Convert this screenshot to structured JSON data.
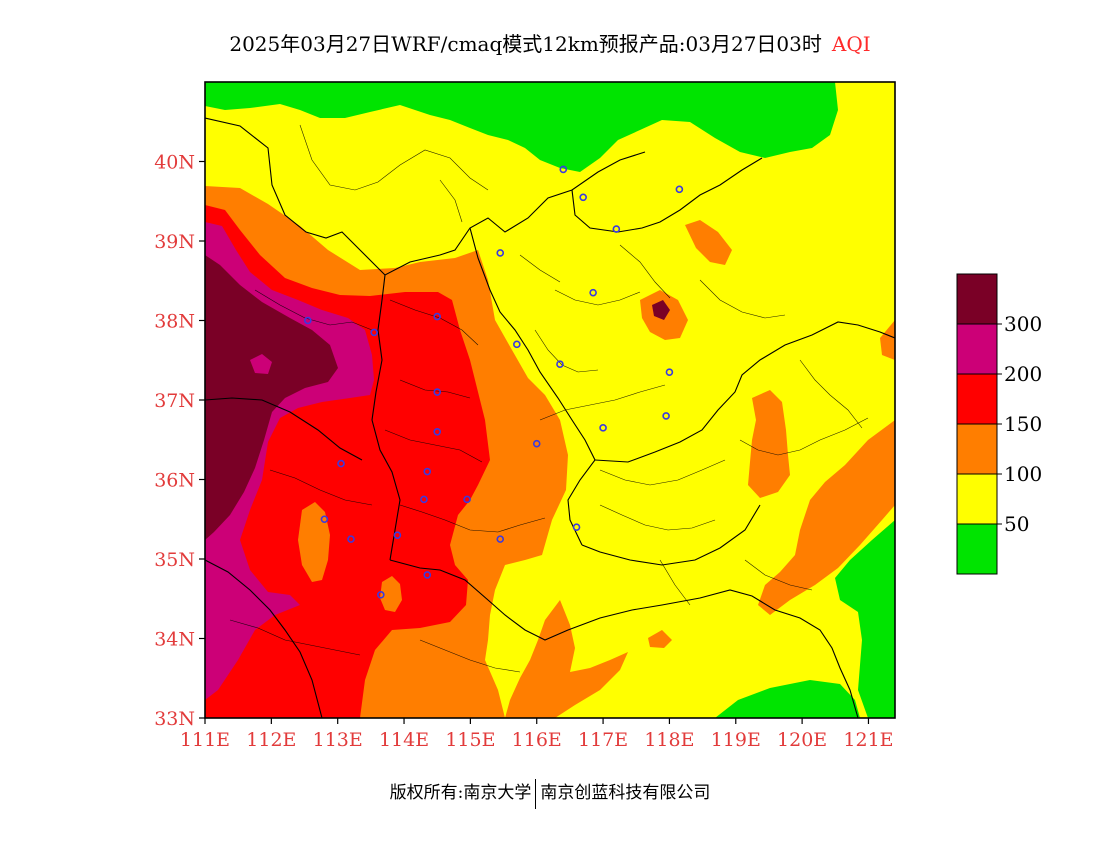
{
  "title": {
    "main": "2025年03月27日WRF/cmaq模式12km预报产品:03月27日03时",
    "variable": "AQI"
  },
  "map": {
    "lon_range": [
      111,
      121.4
    ],
    "lat_range": [
      33,
      41
    ],
    "x_ticks": [
      {
        "lon": 111,
        "label": "111E"
      },
      {
        "lon": 112,
        "label": "112E"
      },
      {
        "lon": 113,
        "label": "113E"
      },
      {
        "lon": 114,
        "label": "114E"
      },
      {
        "lon": 115,
        "label": "115E"
      },
      {
        "lon": 116,
        "label": "116E"
      },
      {
        "lon": 117,
        "label": "117E"
      },
      {
        "lon": 118,
        "label": "118E"
      },
      {
        "lon": 119,
        "label": "119E"
      },
      {
        "lon": 120,
        "label": "120E"
      },
      {
        "lon": 121,
        "label": "121E"
      }
    ],
    "y_ticks": [
      {
        "lat": 40,
        "label": "40N"
      },
      {
        "lat": 39,
        "label": "39N"
      },
      {
        "lat": 38,
        "label": "38N"
      },
      {
        "lat": 37,
        "label": "37N"
      },
      {
        "lat": 36,
        "label": "36N"
      },
      {
        "lat": 35,
        "label": "35N"
      },
      {
        "lat": 34,
        "label": "34N"
      },
      {
        "lat": 33,
        "label": "33N"
      }
    ],
    "stations": [
      {
        "lon": 116.4,
        "lat": 39.9
      },
      {
        "lon": 116.7,
        "lat": 39.55
      },
      {
        "lon": 118.15,
        "lat": 39.65
      },
      {
        "lon": 117.2,
        "lat": 39.15
      },
      {
        "lon": 115.45,
        "lat": 38.85
      },
      {
        "lon": 116.85,
        "lat": 38.35
      },
      {
        "lon": 112.55,
        "lat": 38.0
      },
      {
        "lon": 113.55,
        "lat": 37.85
      },
      {
        "lon": 114.5,
        "lat": 38.05
      },
      {
        "lon": 115.7,
        "lat": 37.7
      },
      {
        "lon": 116.35,
        "lat": 37.45
      },
      {
        "lon": 114.5,
        "lat": 37.1
      },
      {
        "lon": 118.0,
        "lat": 37.35
      },
      {
        "lon": 114.5,
        "lat": 36.6
      },
      {
        "lon": 117.95,
        "lat": 36.8
      },
      {
        "lon": 116.0,
        "lat": 36.45
      },
      {
        "lon": 117.0,
        "lat": 36.65
      },
      {
        "lon": 113.05,
        "lat": 36.2
      },
      {
        "lon": 114.35,
        "lat": 36.1
      },
      {
        "lon": 114.3,
        "lat": 35.75
      },
      {
        "lon": 114.95,
        "lat": 35.75
      },
      {
        "lon": 112.8,
        "lat": 35.5
      },
      {
        "lon": 113.2,
        "lat": 35.25
      },
      {
        "lon": 113.9,
        "lat": 35.3
      },
      {
        "lon": 115.45,
        "lat": 35.25
      },
      {
        "lon": 116.6,
        "lat": 35.4
      },
      {
        "lon": 114.35,
        "lat": 34.8
      },
      {
        "lon": 113.65,
        "lat": 34.55
      }
    ]
  },
  "legend": {
    "bins": [
      {
        "color": "#7a0026"
      },
      {
        "color": "#cc0077"
      },
      {
        "color": "#ff0000"
      },
      {
        "color": "#ff7e00"
      },
      {
        "color": "#ffff00"
      },
      {
        "color": "#00e400"
      }
    ],
    "labels": [
      "300",
      "200",
      "150",
      "100",
      "50"
    ]
  },
  "colors": {
    "good": "#00e400",
    "moderate": "#ffff00",
    "light": "#ff7e00",
    "medium": "#ff0000",
    "heavy": "#cc0077",
    "severe": "#7a0026",
    "tick_label": "#e23b3b",
    "station": "#3a3ae0"
  },
  "copyright": {
    "left": "版权所有:南京大学",
    "right": "南京创蓝科技有限公司"
  }
}
